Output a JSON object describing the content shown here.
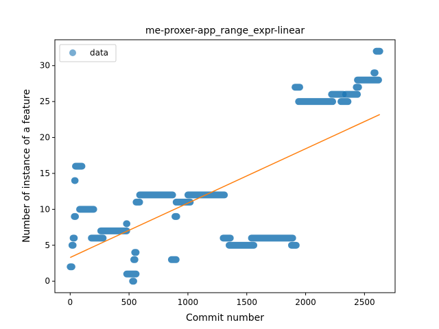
{
  "chart_data": {
    "type": "scatter",
    "title": "me-proxer-app_range_expr-linear",
    "xlabel": "Commit number",
    "ylabel": "Number of instance of a feature",
    "xlim": [
      -130,
      2760
    ],
    "ylim": [
      -1.6,
      33.6
    ],
    "xticks": [
      0,
      500,
      1000,
      1500,
      2000,
      2500
    ],
    "yticks": [
      0,
      5,
      10,
      15,
      20,
      25,
      30
    ],
    "grid": false,
    "legend": {
      "position": "top-left",
      "entries": [
        "data"
      ]
    },
    "colors": {
      "data": "#1f77b4",
      "fit": "#ff7f0e"
    },
    "series": [
      {
        "name": "data",
        "kind": "points",
        "segments": [
          {
            "x0": 0,
            "x1": 15,
            "y": 2
          },
          {
            "x0": 15,
            "x1": 25,
            "y": 5
          },
          {
            "x0": 25,
            "x1": 35,
            "y": 6
          },
          {
            "x0": 35,
            "x1": 45,
            "y": 9
          },
          {
            "x0": 38,
            "x1": 42,
            "y": 14
          },
          {
            "x0": 45,
            "x1": 100,
            "y": 16
          },
          {
            "x0": 80,
            "x1": 200,
            "y": 10
          },
          {
            "x0": 180,
            "x1": 280,
            "y": 6
          },
          {
            "x0": 260,
            "x1": 480,
            "y": 7
          },
          {
            "x0": 478,
            "x1": 482,
            "y": 8
          },
          {
            "x0": 480,
            "x1": 560,
            "y": 1
          },
          {
            "x0": 530,
            "x1": 540,
            "y": 0
          },
          {
            "x0": 540,
            "x1": 550,
            "y": 3
          },
          {
            "x0": 548,
            "x1": 560,
            "y": 4
          },
          {
            "x0": 560,
            "x1": 590,
            "y": 11
          },
          {
            "x0": 590,
            "x1": 870,
            "y": 12
          },
          {
            "x0": 860,
            "x1": 900,
            "y": 3
          },
          {
            "x0": 890,
            "x1": 905,
            "y": 9
          },
          {
            "x0": 900,
            "x1": 1020,
            "y": 11
          },
          {
            "x0": 1000,
            "x1": 1310,
            "y": 12
          },
          {
            "x0": 1300,
            "x1": 1360,
            "y": 6
          },
          {
            "x0": 1350,
            "x1": 1560,
            "y": 5
          },
          {
            "x0": 1540,
            "x1": 1890,
            "y": 6
          },
          {
            "x0": 1880,
            "x1": 1920,
            "y": 5
          },
          {
            "x0": 1910,
            "x1": 1950,
            "y": 27
          },
          {
            "x0": 1940,
            "x1": 2230,
            "y": 25
          },
          {
            "x0": 2220,
            "x1": 2320,
            "y": 26
          },
          {
            "x0": 2300,
            "x1": 2360,
            "y": 25
          },
          {
            "x0": 2340,
            "x1": 2440,
            "y": 26
          },
          {
            "x0": 2430,
            "x1": 2450,
            "y": 27
          },
          {
            "x0": 2440,
            "x1": 2620,
            "y": 28
          },
          {
            "x0": 2580,
            "x1": 2590,
            "y": 29
          },
          {
            "x0": 2600,
            "x1": 2630,
            "y": 32
          }
        ]
      },
      {
        "name": "",
        "kind": "line",
        "x": [
          0,
          2630
        ],
        "y": [
          3.3,
          23.2
        ]
      }
    ]
  }
}
